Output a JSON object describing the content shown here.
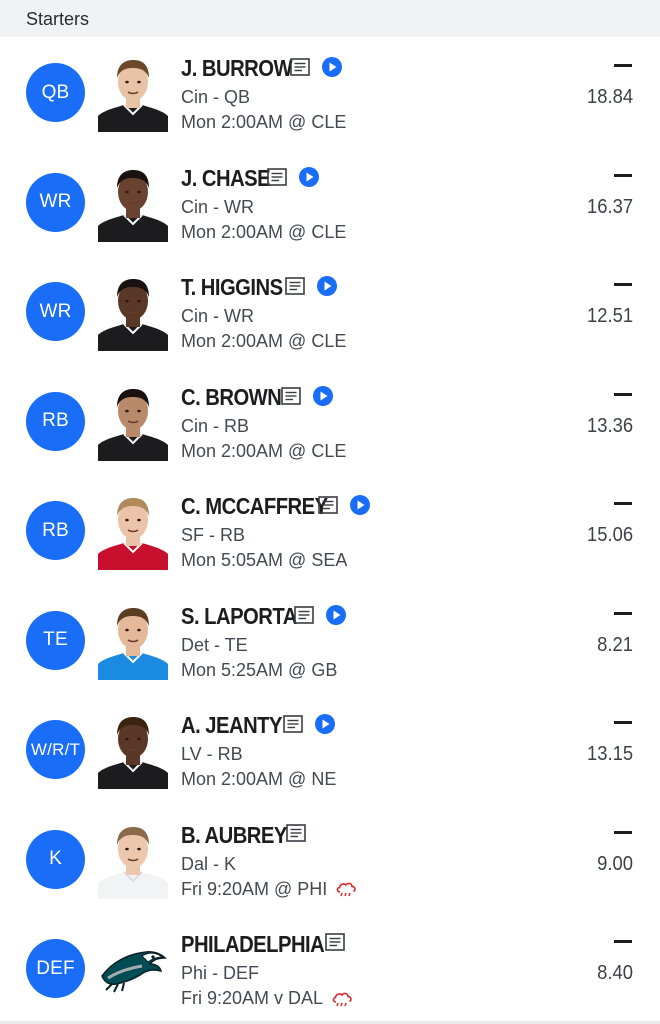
{
  "section": {
    "title": "Starters"
  },
  "colors": {
    "badge": "#1a6df6",
    "weather": "#e0262e"
  },
  "players": [
    {
      "pos": "QB",
      "name": "J. BURROW",
      "team_pos": "Cin - QB",
      "game": "Mon 2:00AM @ CLE",
      "dash": "—",
      "proj": "18.84",
      "video": true,
      "weather": false,
      "jersey": "#1c1c1e",
      "skin": "#e8c3a6",
      "hair": "#6b4a2a",
      "icon_offset": 290
    },
    {
      "pos": "WR",
      "name": "J. CHASE",
      "team_pos": "Cin - WR",
      "game": "Mon 2:00AM @ CLE",
      "dash": "—",
      "proj": "16.37",
      "video": true,
      "weather": false,
      "jersey": "#1c1c1e",
      "skin": "#6a4330",
      "hair": "#1a1210",
      "icon_offset": 267
    },
    {
      "pos": "WR",
      "name": "T. HIGGINS",
      "team_pos": "Cin - WR",
      "game": "Mon 2:00AM @ CLE",
      "dash": "—",
      "proj": "12.51",
      "video": true,
      "weather": false,
      "jersey": "#1c1c1e",
      "skin": "#5a3828",
      "hair": "#1a1210",
      "icon_offset": 285
    },
    {
      "pos": "RB",
      "name": "C. BROWN",
      "team_pos": "Cin - RB",
      "game": "Mon 2:00AM @ CLE",
      "dash": "—",
      "proj": "13.36",
      "video": true,
      "weather": false,
      "jersey": "#1c1c1e",
      "skin": "#b88a6a",
      "hair": "#1a1210",
      "icon_offset": 281
    },
    {
      "pos": "RB",
      "name": "C. MCCAFFREY",
      "team_pos": "SF - RB",
      "game": "Mon 5:05AM @ SEA",
      "dash": "—",
      "proj": "15.06",
      "video": true,
      "weather": false,
      "jersey": "#c8102e",
      "skin": "#eac3a8",
      "hair": "#b08a5a",
      "icon_offset": 318
    },
    {
      "pos": "TE",
      "name": "S. LAPORTA",
      "team_pos": "Det - TE",
      "game": "Mon 5:25AM @ GB",
      "dash": "—",
      "proj": "8.21",
      "video": true,
      "weather": false,
      "jersey": "#1a8be0",
      "skin": "#e4b898",
      "hair": "#5a3e24",
      "icon_offset": 294
    },
    {
      "pos": "W/R/T",
      "name": "A. JEANTY",
      "team_pos": "LV - RB",
      "game": "Mon 2:00AM @ NE",
      "dash": "—",
      "proj": "13.15",
      "video": true,
      "weather": false,
      "jersey": "#1c1c1e",
      "skin": "#5a3828",
      "hair": "#3a2410",
      "icon_offset": 283
    },
    {
      "pos": "K",
      "name": "B. AUBREY",
      "team_pos": "Dal - K",
      "game": "Fri 9:20AM @ PHI",
      "dash": "—",
      "proj": "9.00",
      "video": false,
      "weather": true,
      "jersey": "#f2f3f5",
      "skin": "#ecc7ad",
      "hair": "#8a6a4a",
      "icon_offset": 286
    },
    {
      "pos": "DEF",
      "name": "PHILADELPHIA",
      "team_pos": "Phi - DEF",
      "game": "Fri 9:20AM v DAL",
      "dash": "—",
      "proj": "8.40",
      "video": false,
      "weather": true,
      "jersey": "",
      "skin": "",
      "hair": "",
      "icon_offset": 325,
      "logo": "eagle-logo"
    }
  ]
}
